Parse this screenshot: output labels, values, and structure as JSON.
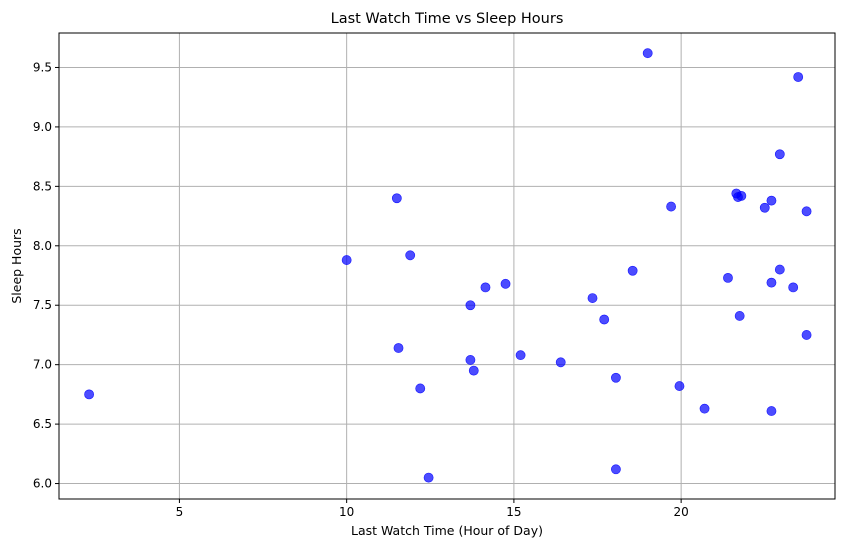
{
  "chart_data": {
    "type": "scatter",
    "title": "Last Watch Time vs Sleep Hours",
    "xlabel": "Last Watch Time (Hour of Day)",
    "ylabel": "Sleep Hours",
    "xlim": [
      1.4,
      24.6
    ],
    "ylim": [
      5.87,
      9.79
    ],
    "xticks": [
      5,
      10,
      15,
      20
    ],
    "xtick_labels": [
      "5",
      "10",
      "15",
      "20"
    ],
    "yticks": [
      6.0,
      6.5,
      7.0,
      7.5,
      8.0,
      8.5,
      9.0,
      9.5
    ],
    "ytick_labels": [
      "6.0",
      "6.5",
      "7.0",
      "7.5",
      "8.0",
      "8.5",
      "9.0",
      "9.5"
    ],
    "grid": true,
    "marker_color": "#0000ff",
    "marker_opacity": 0.7,
    "points": [
      {
        "x": 2.3,
        "y": 6.75
      },
      {
        "x": 10.0,
        "y": 7.88
      },
      {
        "x": 11.5,
        "y": 8.4
      },
      {
        "x": 11.55,
        "y": 7.14
      },
      {
        "x": 11.9,
        "y": 7.92
      },
      {
        "x": 12.2,
        "y": 6.8
      },
      {
        "x": 12.45,
        "y": 6.05
      },
      {
        "x": 13.7,
        "y": 7.5
      },
      {
        "x": 13.7,
        "y": 7.04
      },
      {
        "x": 13.8,
        "y": 6.95
      },
      {
        "x": 14.15,
        "y": 7.65
      },
      {
        "x": 14.75,
        "y": 7.68
      },
      {
        "x": 15.2,
        "y": 7.08
      },
      {
        "x": 16.4,
        "y": 7.02
      },
      {
        "x": 17.35,
        "y": 7.56
      },
      {
        "x": 17.7,
        "y": 7.38
      },
      {
        "x": 18.05,
        "y": 6.89
      },
      {
        "x": 18.05,
        "y": 6.12
      },
      {
        "x": 18.55,
        "y": 7.79
      },
      {
        "x": 19.0,
        "y": 9.62
      },
      {
        "x": 19.7,
        "y": 8.33
      },
      {
        "x": 19.95,
        "y": 6.82
      },
      {
        "x": 20.7,
        "y": 6.63
      },
      {
        "x": 21.4,
        "y": 7.73
      },
      {
        "x": 21.65,
        "y": 8.44
      },
      {
        "x": 21.7,
        "y": 8.41
      },
      {
        "x": 21.8,
        "y": 8.42
      },
      {
        "x": 21.75,
        "y": 7.41
      },
      {
        "x": 22.5,
        "y": 8.32
      },
      {
        "x": 22.7,
        "y": 8.38
      },
      {
        "x": 22.7,
        "y": 7.69
      },
      {
        "x": 22.7,
        "y": 6.61
      },
      {
        "x": 22.95,
        "y": 8.77
      },
      {
        "x": 22.95,
        "y": 7.8
      },
      {
        "x": 23.35,
        "y": 7.65
      },
      {
        "x": 23.5,
        "y": 9.42
      },
      {
        "x": 23.75,
        "y": 8.29
      },
      {
        "x": 23.75,
        "y": 7.25
      }
    ]
  }
}
